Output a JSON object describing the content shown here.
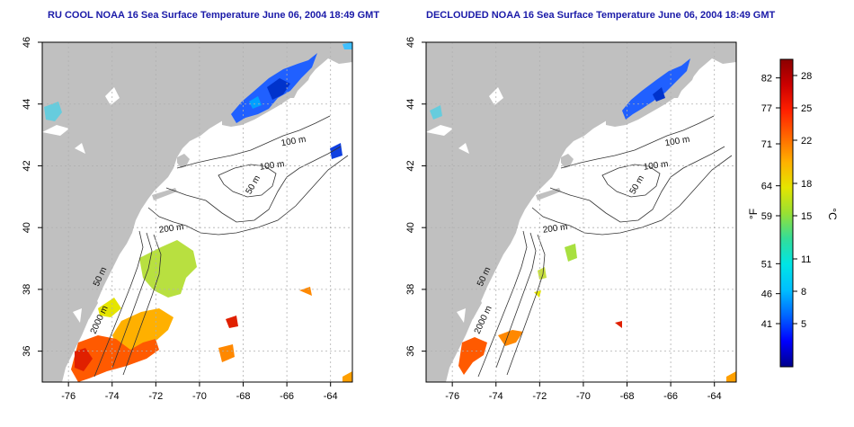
{
  "panels": [
    {
      "id": "left",
      "title": "RU COOL NOAA 16 Sea Surface Temperature June 06, 2004 18:49 GMT",
      "contour_labels": [
        "100 m",
        "100 m",
        "50 m",
        "200 m",
        "50 m",
        "2000 m"
      ]
    },
    {
      "id": "right",
      "title": "DECLOUDED NOAA 16 Sea Surface Temperature June 06, 2004 18:49 GMT",
      "contour_labels": [
        "100 m",
        "100 m",
        "50 m",
        "200 m",
        "50 m",
        "2000 m"
      ]
    }
  ],
  "axes": {
    "x_ticks": [
      "-76",
      "-74",
      "-72",
      "-70",
      "-68",
      "-66",
      "-64"
    ],
    "x_values": [
      -76,
      -74,
      -72,
      -70,
      -68,
      -66,
      -64
    ],
    "y_ticks": [
      "36",
      "38",
      "40",
      "42",
      "44",
      "46"
    ],
    "y_values": [
      36,
      38,
      40,
      42,
      44,
      46
    ],
    "lon_range": [
      -77.2,
      -63.0
    ],
    "lat_range": [
      35.0,
      46.0
    ]
  },
  "colorbar": {
    "unit_f": "°F",
    "unit_c": "°C",
    "f_ticks": [
      "82",
      "77",
      "71",
      "64",
      "59",
      "51",
      "46",
      "41"
    ],
    "f_values": [
      82,
      77,
      71,
      64,
      59,
      51,
      46,
      41
    ],
    "c_ticks": [
      "28",
      "25",
      "22",
      "18",
      "15",
      "11",
      "8",
      "5"
    ],
    "c_values": [
      28,
      25,
      22,
      18,
      15,
      11,
      8,
      5
    ],
    "c_range": [
      1,
      29.5
    ],
    "colors": [
      "#00008b",
      "#0000ff",
      "#0066ff",
      "#00bfff",
      "#00e5e5",
      "#33dd99",
      "#99e033",
      "#e5e500",
      "#ffb000",
      "#ff6600",
      "#ff2000",
      "#cc0000",
      "#8b0000"
    ]
  },
  "colors": {
    "land": "#c0c0c0",
    "ocean": "#ffffff",
    "grid": "#b0b0b0",
    "title": "#1a1aa8"
  }
}
